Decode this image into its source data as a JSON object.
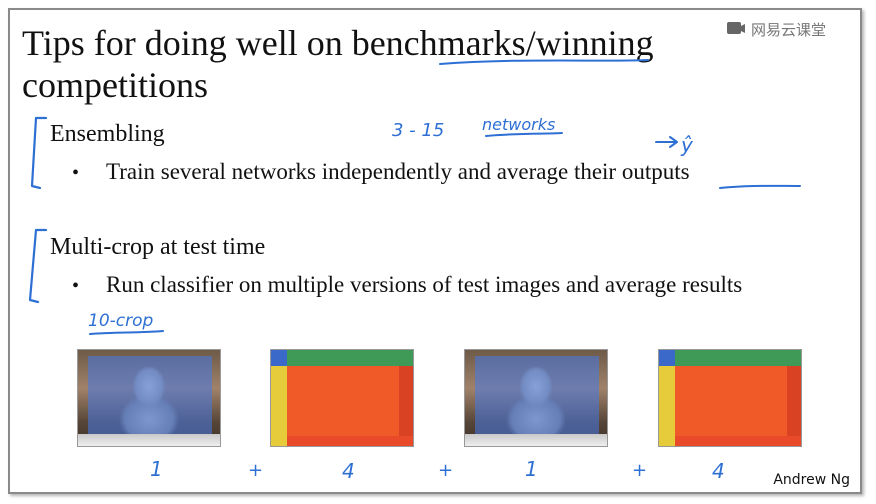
{
  "slide": {
    "title": "Tips for doing well on benchmarks/winning\ncompetitions",
    "watermark": "网易云课堂",
    "credit": "Andrew Ng"
  },
  "sections": [
    {
      "heading": "Ensembling",
      "bullet": "Train several networks independently and average their outputs"
    },
    {
      "heading": "Multi-crop at test time",
      "bullet": "Run classifier on multiple versions of test images and average results"
    }
  ],
  "annotations": {
    "networks_range": "3 - 15",
    "networks_word": "networks",
    "yhat": "ŷ",
    "ten_crop": "10-crop",
    "weights": [
      "1",
      "+",
      "4",
      "+",
      "1",
      "+",
      "4"
    ]
  },
  "colors": {
    "ink": "#2e6fd4",
    "crop_orange": "#f05a28",
    "crop_green": "#3f9a58",
    "crop_yellow": "#e6cc3a",
    "overlay_blue": "#4678e6"
  }
}
